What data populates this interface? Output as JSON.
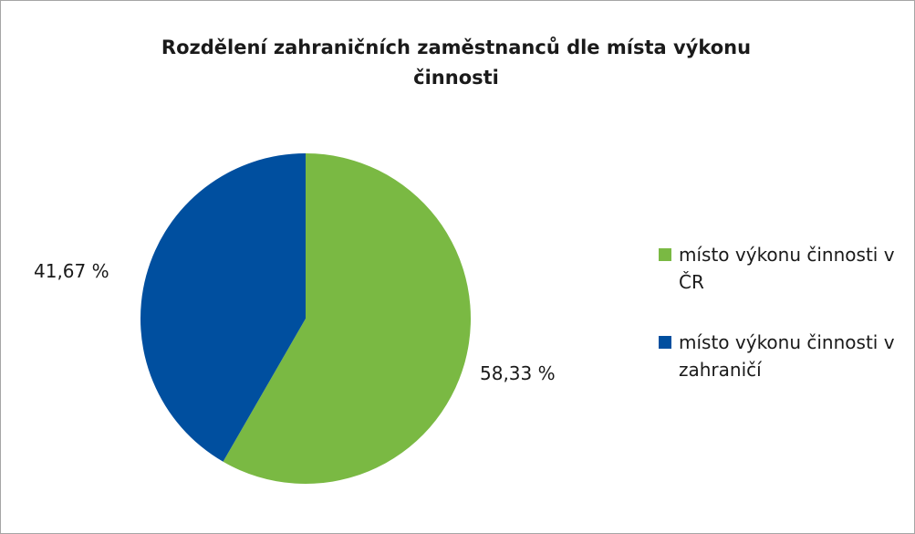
{
  "chart_data": {
    "type": "pie",
    "title": "Rozdělení zahraničních zaměstnanců dle místa výkonu činnosti",
    "categories": [
      "místo výkonu činnosti v ČR",
      "místo výkonu činnosti v zahraničí"
    ],
    "values": [
      58.33,
      41.67
    ],
    "value_labels": [
      "58,33 %",
      "41,67 %"
    ],
    "colors": [
      "#7ab943",
      "#004f9f"
    ],
    "legend": "right"
  }
}
